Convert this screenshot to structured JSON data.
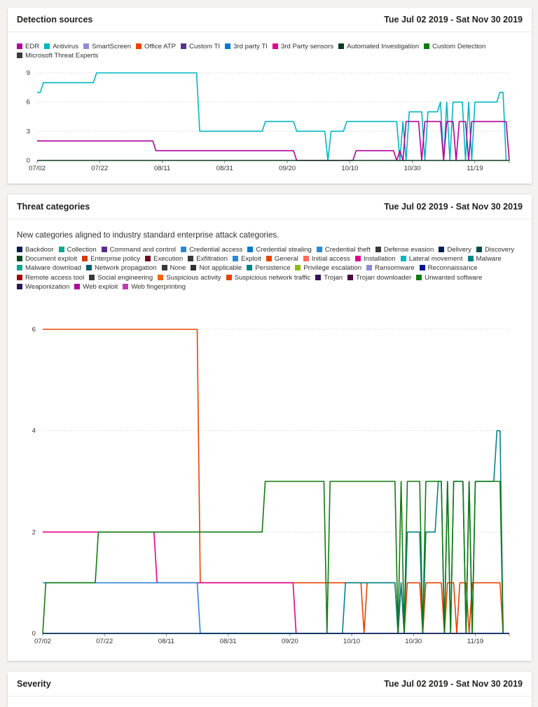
{
  "cards": [
    {
      "title": "Detection sources",
      "range": "Tue Jul 02 2019 - Sat Nov 30 2019"
    },
    {
      "title": "Threat categories",
      "range": "Tue Jul 02 2019 - Sat Nov 30 2019",
      "description": "New categories aligned to industry standard enterprise attack categories."
    },
    {
      "title": "Severity",
      "range": "Tue Jul 02 2019 - Sat Nov 30 2019"
    }
  ],
  "chart_data": [
    {
      "type": "line",
      "title": "Detection sources",
      "x_ticks": [
        "07/02",
        "07/22",
        "08/11",
        "08/31",
        "09/20",
        "10/10",
        "10/30",
        "11/19"
      ],
      "x_range_days": [
        0,
        151
      ],
      "ylim": [
        0,
        9
      ],
      "y_ticks": [
        0,
        3,
        6,
        9
      ],
      "legend": [
        {
          "name": "EDR",
          "color": "#b4009e"
        },
        {
          "name": "Antivirus",
          "color": "#00b7c3"
        },
        {
          "name": "SmartScreen",
          "color": "#8e8cd8"
        },
        {
          "name": "Office ATP",
          "color": "#ea4300"
        },
        {
          "name": "Custom TI",
          "color": "#5c2d91"
        },
        {
          "name": "3rd party TI",
          "color": "#0078d4"
        },
        {
          "name": "3rd Party sensors",
          "color": "#e3008c"
        },
        {
          "name": "Automated Investigation",
          "color": "#0b3d1f"
        },
        {
          "name": "Custom Detection",
          "color": "#107c10"
        },
        {
          "name": "Microsoft Threat Experts",
          "color": "#393939"
        }
      ],
      "series": [
        {
          "name": "Antivirus",
          "color": "#00b7c3",
          "points": [
            [
              0,
              7
            ],
            [
              1,
              7
            ],
            [
              2,
              8
            ],
            [
              18,
              8
            ],
            [
              19,
              9
            ],
            [
              51,
              9
            ],
            [
              52,
              3
            ],
            [
              72,
              3
            ],
            [
              73,
              4
            ],
            [
              82,
              4
            ],
            [
              83,
              3
            ],
            [
              92,
              3
            ],
            [
              93,
              0
            ],
            [
              94,
              3
            ],
            [
              98,
              3
            ],
            [
              99,
              4
            ],
            [
              115,
              4
            ],
            [
              116,
              0
            ],
            [
              117,
              4
            ],
            [
              118,
              0
            ],
            [
              119,
              5
            ],
            [
              123,
              5
            ],
            [
              124,
              0
            ],
            [
              125,
              5
            ],
            [
              128,
              5
            ],
            [
              129,
              6
            ],
            [
              130,
              0
            ],
            [
              131,
              6
            ],
            [
              132,
              0
            ],
            [
              133,
              6
            ],
            [
              136,
              6
            ],
            [
              137,
              0
            ],
            [
              138,
              6
            ],
            [
              139,
              0
            ],
            [
              140,
              6
            ],
            [
              147,
              6
            ],
            [
              148,
              7
            ],
            [
              149,
              7
            ],
            [
              150,
              0
            ]
          ]
        },
        {
          "name": "EDR",
          "color": "#b4009e",
          "points": [
            [
              0,
              2
            ],
            [
              37,
              2
            ],
            [
              38,
              1
            ],
            [
              82,
              1
            ],
            [
              83,
              0
            ],
            [
              101,
              0
            ],
            [
              102,
              1
            ],
            [
              114,
              1
            ],
            [
              115,
              0
            ],
            [
              116,
              1
            ],
            [
              117,
              0
            ],
            [
              118,
              4
            ],
            [
              122,
              4
            ],
            [
              123,
              0
            ],
            [
              124,
              4
            ],
            [
              129,
              4
            ],
            [
              130,
              0
            ],
            [
              131,
              4
            ],
            [
              133,
              4
            ],
            [
              134,
              0
            ],
            [
              135,
              4
            ],
            [
              137,
              4
            ],
            [
              138,
              0
            ],
            [
              139,
              4
            ],
            [
              150,
              4
            ],
            [
              151,
              0
            ]
          ]
        },
        {
          "name": "Automated Investigation",
          "color": "#0b3d1f",
          "points": [
            [
              0,
              0
            ],
            [
              151,
              0
            ]
          ]
        }
      ]
    },
    {
      "type": "line",
      "title": "Threat categories",
      "x_ticks": [
        "07/02",
        "07/22",
        "08/11",
        "08/31",
        "09/20",
        "10/10",
        "10/30",
        "11/19"
      ],
      "x_range_days": [
        0,
        151
      ],
      "ylim": [
        0,
        6
      ],
      "y_ticks": [
        0,
        2,
        4,
        6
      ],
      "legend": [
        {
          "name": "Backdoor",
          "color": "#002050"
        },
        {
          "name": "Collection",
          "color": "#00a98f"
        },
        {
          "name": "Command and control",
          "color": "#5c2d91"
        },
        {
          "name": "Credential access",
          "color": "#2b88d8"
        },
        {
          "name": "Credential stealing",
          "color": "#0078d4"
        },
        {
          "name": "Credential theft",
          "color": "#2b88d8"
        },
        {
          "name": "Defense evasion",
          "color": "#393939"
        },
        {
          "name": "Delivery",
          "color": "#002050"
        },
        {
          "name": "Discovery",
          "color": "#004b50"
        },
        {
          "name": "Document exploit",
          "color": "#004b1c"
        },
        {
          "name": "Enterprise policy",
          "color": "#d83b01"
        },
        {
          "name": "Execution",
          "color": "#750b1c"
        },
        {
          "name": "Exfiltration",
          "color": "#393939"
        },
        {
          "name": "Exploit",
          "color": "#2b88d8"
        },
        {
          "name": "General",
          "color": "#ea4300"
        },
        {
          "name": "Initial access",
          "color": "#ff6c57"
        },
        {
          "name": "Installation",
          "color": "#e3008c"
        },
        {
          "name": "Lateral movement",
          "color": "#00b7c3"
        },
        {
          "name": "Malware",
          "color": "#038387"
        },
        {
          "name": "Malware download",
          "color": "#00a98f"
        },
        {
          "name": "Network propagation",
          "color": "#005b70"
        },
        {
          "name": "None",
          "color": "#393939"
        },
        {
          "name": "Not applicable",
          "color": "#323130"
        },
        {
          "name": "Persistence",
          "color": "#038387"
        },
        {
          "name": "Privilege escalation",
          "color": "#8cbd18"
        },
        {
          "name": "Ransomware",
          "color": "#8e8cd8"
        },
        {
          "name": "Reconnaissance",
          "color": "#00188f"
        },
        {
          "name": "Remote access tool",
          "color": "#a80000"
        },
        {
          "name": "Social engineering",
          "color": "#393939"
        },
        {
          "name": "Suspicious activity",
          "color": "#f7630c"
        },
        {
          "name": "Suspicious network traffic",
          "color": "#ea4300"
        },
        {
          "name": "Trojan",
          "color": "#32145a"
        },
        {
          "name": "Trojan downloader",
          "color": "#4b003f"
        },
        {
          "name": "Unwanted software",
          "color": "#107c10"
        },
        {
          "name": "Weaponization",
          "color": "#32145a"
        },
        {
          "name": "Web exploit",
          "color": "#b4009e"
        },
        {
          "name": "Web fingerprinting",
          "color": "#c239b3"
        }
      ],
      "series": [
        {
          "name": "General",
          "color": "#ea4300",
          "points": [
            [
              0,
              6
            ],
            [
              50,
              6
            ],
            [
              51,
              1
            ],
            [
              103,
              1
            ],
            [
              104,
              0
            ],
            [
              105,
              1
            ],
            [
              114,
              1
            ],
            [
              115,
              0
            ],
            [
              116,
              1
            ],
            [
              117,
              0
            ],
            [
              118,
              1
            ],
            [
              122,
              1
            ],
            [
              123,
              0
            ],
            [
              124,
              1
            ],
            [
              129,
              1
            ],
            [
              130,
              0
            ],
            [
              131,
              1
            ],
            [
              133,
              1
            ],
            [
              134,
              0
            ],
            [
              135,
              1
            ],
            [
              137,
              1
            ],
            [
              138,
              0
            ],
            [
              139,
              1
            ],
            [
              148,
              1
            ],
            [
              149,
              0
            ]
          ]
        },
        {
          "name": "Installation",
          "color": "#e3008c",
          "points": [
            [
              0,
              2
            ],
            [
              36,
              2
            ],
            [
              37,
              1
            ],
            [
              81,
              1
            ],
            [
              82,
              0
            ],
            [
              151,
              0
            ]
          ]
        },
        {
          "name": "Credential access",
          "color": "#2b88d8",
          "points": [
            [
              0,
              1
            ],
            [
              50,
              1
            ],
            [
              51,
              0
            ],
            [
              151,
              0
            ]
          ]
        },
        {
          "name": "Malware",
          "color": "#038387",
          "points": [
            [
              0,
              0
            ],
            [
              97,
              0
            ],
            [
              98,
              1
            ],
            [
              114,
              1
            ],
            [
              115,
              0
            ],
            [
              116,
              1
            ],
            [
              117,
              0
            ],
            [
              118,
              2
            ],
            [
              122,
              2
            ],
            [
              123,
              0
            ],
            [
              124,
              2
            ],
            [
              127,
              2
            ],
            [
              128,
              3
            ],
            [
              129,
              3
            ],
            [
              130,
              0
            ],
            [
              131,
              3
            ],
            [
              132,
              0
            ],
            [
              133,
              3
            ],
            [
              136,
              3
            ],
            [
              137,
              0
            ],
            [
              138,
              3
            ],
            [
              139,
              0
            ],
            [
              140,
              3
            ],
            [
              146,
              3
            ],
            [
              147,
              4
            ],
            [
              148,
              4
            ],
            [
              149,
              0
            ]
          ]
        },
        {
          "name": "Unwanted software",
          "color": "#107c10",
          "points": [
            [
              0,
              0
            ],
            [
              1,
              1
            ],
            [
              17,
              1
            ],
            [
              18,
              2
            ],
            [
              71,
              2
            ],
            [
              72,
              3
            ],
            [
              91,
              3
            ],
            [
              92,
              0
            ],
            [
              93,
              3
            ],
            [
              114,
              3
            ],
            [
              115,
              0
            ],
            [
              116,
              3
            ],
            [
              117,
              0
            ],
            [
              118,
              3
            ],
            [
              122,
              3
            ],
            [
              123,
              0
            ],
            [
              124,
              3
            ],
            [
              129,
              3
            ],
            [
              130,
              0
            ],
            [
              131,
              3
            ],
            [
              132,
              0
            ],
            [
              133,
              3
            ],
            [
              136,
              3
            ],
            [
              137,
              0
            ],
            [
              138,
              3
            ],
            [
              139,
              0
            ],
            [
              140,
              3
            ],
            [
              148,
              3
            ],
            [
              149,
              0
            ]
          ]
        },
        {
          "name": "Backdoor",
          "color": "#002050",
          "points": [
            [
              0,
              0
            ],
            [
              151,
              0
            ]
          ]
        }
      ]
    }
  ]
}
